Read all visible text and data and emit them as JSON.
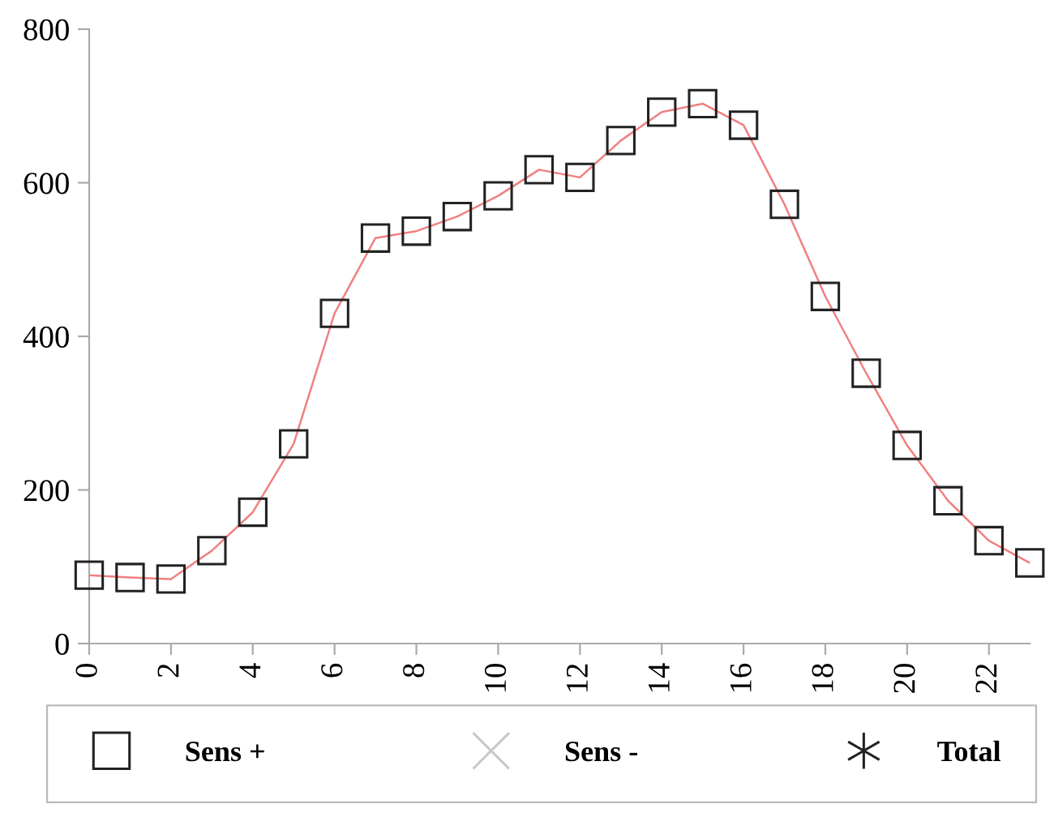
{
  "chart_data": {
    "type": "line",
    "x": [
      0,
      1,
      2,
      3,
      4,
      5,
      6,
      7,
      8,
      9,
      10,
      11,
      12,
      13,
      14,
      15,
      16,
      17,
      18,
      19,
      20,
      21,
      22,
      23
    ],
    "series": [
      {
        "name": "Sens +",
        "color": "#f08080",
        "marker": "square",
        "values": [
          89,
          86,
          84,
          121,
          171,
          260,
          430,
          528,
          537,
          556,
          583,
          617,
          607,
          655,
          692,
          703,
          675,
          572,
          452,
          352,
          258,
          186,
          134,
          105
        ]
      },
      {
        "name": "Sens -",
        "color": "#c8c8c8",
        "marker": "cross",
        "values": [
          null,
          null,
          null,
          null,
          null,
          null,
          null,
          null,
          null,
          null,
          null,
          null,
          null,
          null,
          null,
          null,
          null,
          null,
          null,
          null,
          null,
          null,
          null,
          null
        ]
      },
      {
        "name": "Total",
        "color": "#222222",
        "marker": "star",
        "values": [
          null,
          null,
          null,
          null,
          null,
          null,
          null,
          null,
          null,
          null,
          null,
          null,
          null,
          null,
          null,
          null,
          null,
          null,
          null,
          null,
          null,
          null,
          null,
          null
        ]
      }
    ],
    "xlim": [
      0,
      23
    ],
    "xticks": [
      0,
      2,
      4,
      6,
      8,
      10,
      12,
      14,
      16,
      18,
      20,
      22
    ],
    "ylim": [
      0,
      800
    ],
    "yticks": [
      0,
      200,
      400,
      600,
      800
    ],
    "grid": false,
    "legend": "bottom",
    "line_style": "solid"
  }
}
